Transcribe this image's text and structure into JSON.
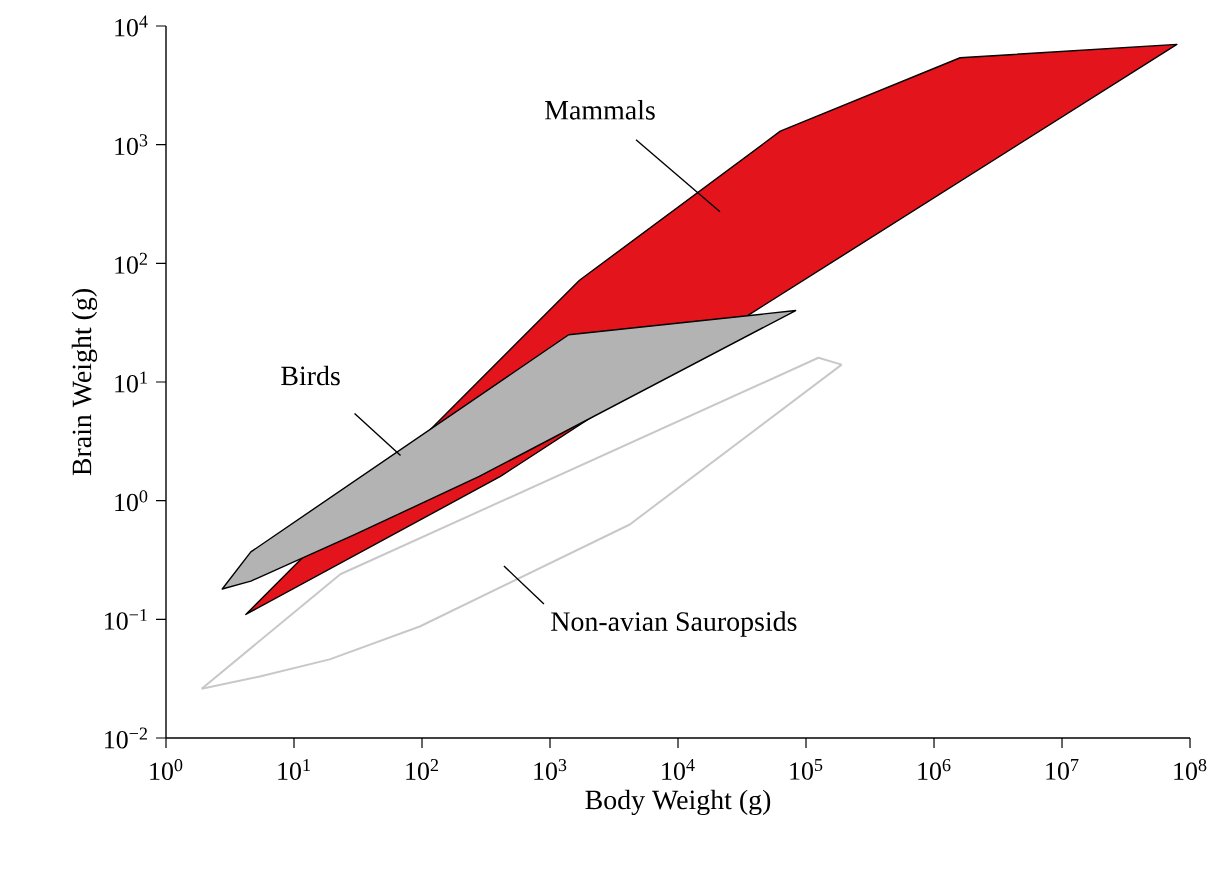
{
  "chart_data": {
    "type": "area",
    "log": "xy",
    "xlabel": "Body Weight (g)",
    "ylabel": "Brain Weight (g)",
    "xlim": [
      1,
      100000000
    ],
    "ylim": [
      0.01,
      10000
    ],
    "xticks": [
      {
        "value": 1,
        "label": "10$^{0}$"
      },
      {
        "value": 10,
        "label": "10$^{1}$"
      },
      {
        "value": 100,
        "label": "10$^{2}$"
      },
      {
        "value": 1000,
        "label": "10$^{3}$"
      },
      {
        "value": 10000,
        "label": "10$^{4}$"
      },
      {
        "value": 100000,
        "label": "10$^{5}$"
      },
      {
        "value": 1000000,
        "label": "10$^{6}$"
      },
      {
        "value": 10000000,
        "label": "10$^{7}$"
      },
      {
        "value": 100000000,
        "label": "10$^{8}$"
      }
    ],
    "yticks": [
      {
        "value": 0.01,
        "label": "10$^{−2}$"
      },
      {
        "value": 0.1,
        "label": "10$^{−1}$"
      },
      {
        "value": 1,
        "label": "10$^{0}$"
      },
      {
        "value": 10,
        "label": "10$^{1}$"
      },
      {
        "value": 100,
        "label": "10$^{2}$"
      },
      {
        "value": 1000,
        "label": "10$^{3}$"
      },
      {
        "value": 10000,
        "label": "10$^{4}$"
      }
    ],
    "series": [
      {
        "color": "#e3141b",
        "x": [
          4.2,
          1700,
          63000,
          1600000,
          79000000,
          36000,
          410,
          4.2
        ],
        "values": [
          0.11,
          72,
          1300,
          5400,
          7000,
          37,
          1.6,
          0.11
        ]
      },
      {
        "color": "#b3b3b3",
        "x": [
          2.75,
          4.6,
          1400,
          83000,
          280,
          30,
          4.6,
          2.75
        ],
        "values": [
          0.18,
          0.37,
          25,
          40,
          1.6,
          0.52,
          0.21,
          0.18
        ]
      },
      {
        "type": "line",
        "color": "#c8c8c8",
        "x": [
          1.9,
          23,
          125000,
          190000
        ],
        "values": [
          0.026,
          0.24,
          16,
          14
        ]
      },
      {
        "type": "line",
        "color": "#c8c8c8",
        "x": [
          1.9,
          5.4,
          19,
          96,
          4200,
          190000
        ],
        "values": [
          0.026,
          0.033,
          0.046,
          0.087,
          0.63,
          14
        ]
      }
    ],
    "annotations": [
      "Mammals",
      {
        "text": "Birds",
        "x": 68,
        "y": 2.4
      },
      "Non-avian Sauropsids"
    ]
  }
}
